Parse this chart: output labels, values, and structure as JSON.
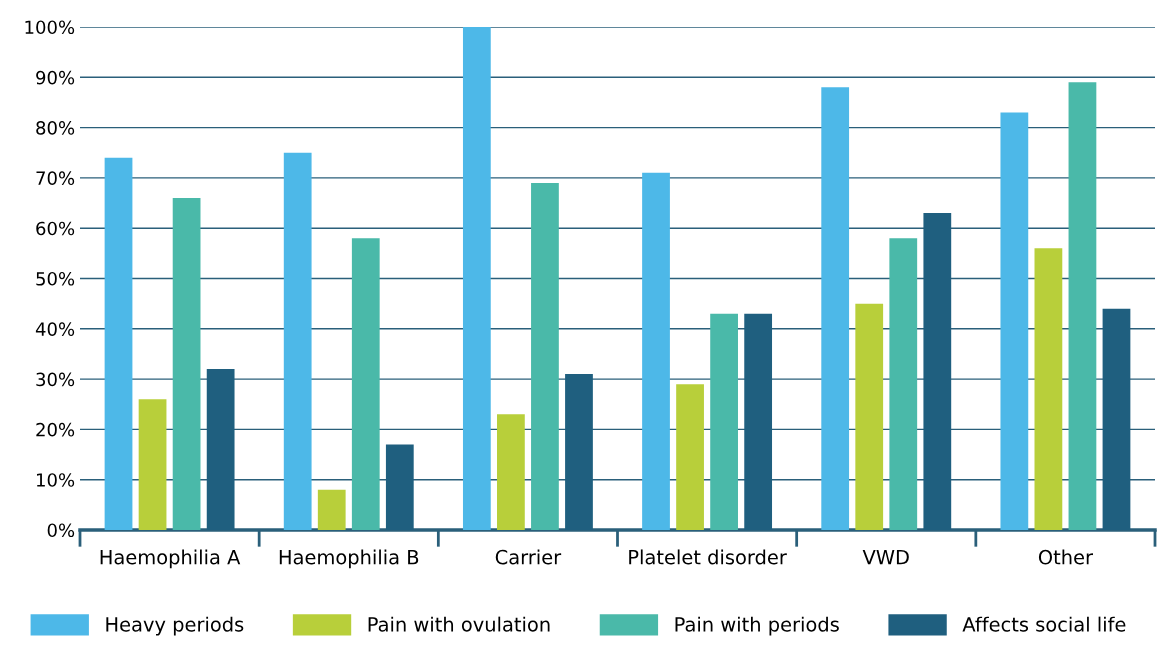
{
  "chart_data": {
    "type": "bar",
    "categories": [
      "Haemophilia A",
      "Haemophilia B",
      "Carrier",
      "Platelet disorder",
      "VWD",
      "Other"
    ],
    "series": [
      {
        "name": "Heavy periods",
        "color": "#4db8e8",
        "values": [
          74,
          75,
          100,
          71,
          88,
          83
        ]
      },
      {
        "name": "Pain with ovulation",
        "color": "#b8cf3a",
        "values": [
          26,
          8,
          23,
          29,
          45,
          56
        ]
      },
      {
        "name": "Pain with periods",
        "color": "#4ab9a9",
        "values": [
          66,
          58,
          69,
          43,
          58,
          89
        ]
      },
      {
        "name": "Affects social life",
        "color": "#1f5f7f",
        "values": [
          32,
          17,
          31,
          43,
          63,
          44
        ]
      }
    ],
    "ylim": [
      0,
      100
    ],
    "yticks": [
      {
        "value": 0,
        "label": "0%"
      },
      {
        "value": 10,
        "label": "10%"
      },
      {
        "value": 20,
        "label": "20%"
      },
      {
        "value": 30,
        "label": "30%"
      },
      {
        "value": 40,
        "label": "40%"
      },
      {
        "value": 50,
        "label": "50%"
      },
      {
        "value": 60,
        "label": "60%"
      },
      {
        "value": 70,
        "label": "70%"
      },
      {
        "value": 80,
        "label": "80%"
      },
      {
        "value": 90,
        "label": "90%"
      },
      {
        "value": 100,
        "label": "100%"
      }
    ],
    "grid": "y",
    "legend": "bottom"
  }
}
